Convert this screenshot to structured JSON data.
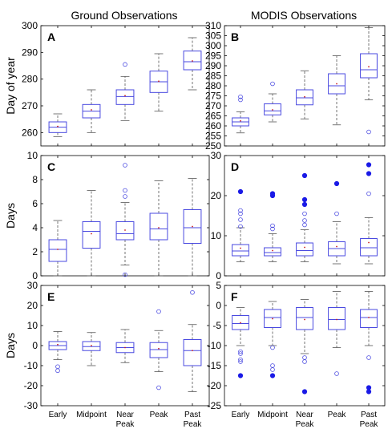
{
  "figure": {
    "column_titles": [
      "Ground Observations",
      "MODIS Observations"
    ],
    "box_color": "#4a4ae0",
    "median_color": "#cc2222",
    "whisker_color": "#555555",
    "filled_outlier_color": "#1a1ae6"
  },
  "chart_data": [
    {
      "type": "box",
      "panel": "A",
      "title": "Ground Observations",
      "ylabel": "Day of year",
      "ylim": [
        255,
        300
      ],
      "yticks": [
        260,
        270,
        280,
        290,
        300
      ],
      "categories": [
        "Early",
        "Midpoint",
        "Near Peak",
        "Peak",
        "Past Peak"
      ],
      "boxes": [
        {
          "whisker_low": 258.5,
          "q1": 260,
          "median": 262,
          "q3": 264,
          "whisker_high": 267,
          "mean": 262.3,
          "outliers": [],
          "filled_outliers": []
        },
        {
          "whisker_low": 260,
          "q1": 265.5,
          "median": 268,
          "q3": 270.5,
          "whisker_high": 276,
          "mean": 268.5,
          "outliers": [],
          "filled_outliers": []
        },
        {
          "whisker_low": 264.5,
          "q1": 270.5,
          "median": 273.5,
          "q3": 276,
          "whisker_high": 281,
          "mean": 273.8,
          "outliers": [
            285.5
          ],
          "filled_outliers": []
        },
        {
          "whisker_low": 268,
          "q1": 275,
          "median": 279,
          "q3": 283,
          "whisker_high": 289.5,
          "mean": 279.2,
          "outliers": [],
          "filled_outliers": []
        },
        {
          "whisker_low": 276,
          "q1": 283.5,
          "median": 286.5,
          "q3": 290.5,
          "whisker_high": 295.5,
          "mean": 286.8,
          "outliers": [],
          "filled_outliers": []
        }
      ]
    },
    {
      "type": "box",
      "panel": "B",
      "title": "MODIS Observations",
      "ylabel": "",
      "ylim": [
        250,
        310
      ],
      "yticks": [
        250,
        255,
        260,
        265,
        270,
        275,
        280,
        285,
        290,
        295,
        300,
        305,
        310
      ],
      "categories": [
        "Early",
        "Midpoint",
        "Near Peak",
        "Peak",
        "Past Peak"
      ],
      "boxes": [
        {
          "whisker_low": 256.5,
          "q1": 260,
          "median": 262,
          "q3": 264,
          "whisker_high": 267,
          "mean": 262.5,
          "outliers": [
            273,
            274.5
          ],
          "filled_outliers": []
        },
        {
          "whisker_low": 262,
          "q1": 265.5,
          "median": 267.5,
          "q3": 271,
          "whisker_high": 276,
          "mean": 268,
          "outliers": [
            281
          ],
          "filled_outliers": []
        },
        {
          "whisker_low": 263.5,
          "q1": 270.5,
          "median": 274,
          "q3": 278,
          "whisker_high": 287.5,
          "mean": 274.5,
          "outliers": [],
          "filled_outliers": []
        },
        {
          "whisker_low": 260.5,
          "q1": 276,
          "median": 280,
          "q3": 286,
          "whisker_high": 295,
          "mean": 281,
          "outliers": [],
          "filled_outliers": []
        },
        {
          "whisker_low": 273,
          "q1": 284,
          "median": 288,
          "q3": 296,
          "whisker_high": 309,
          "mean": 289.5,
          "outliers": [
            257
          ],
          "filled_outliers": []
        }
      ]
    },
    {
      "type": "box",
      "panel": "C",
      "title": "",
      "ylabel": "Days",
      "ylim": [
        0,
        10
      ],
      "yticks": [
        0,
        2,
        4,
        6,
        8,
        10
      ],
      "categories": [
        "Early",
        "Midpoint",
        "Near Peak",
        "Peak",
        "Past Peak"
      ],
      "boxes": [
        {
          "whisker_low": 0,
          "q1": 1.2,
          "median": 2.2,
          "q3": 3,
          "whisker_high": 4.6,
          "mean": 2.2,
          "outliers": [],
          "filled_outliers": []
        },
        {
          "whisker_low": 0,
          "q1": 2.3,
          "median": 3.7,
          "q3": 4.5,
          "whisker_high": 7.1,
          "mean": 3.5,
          "outliers": [],
          "filled_outliers": []
        },
        {
          "whisker_low": 0.9,
          "q1": 3,
          "median": 3.5,
          "q3": 4.5,
          "whisker_high": 6.1,
          "mean": 3.8,
          "outliers": [
            0.1,
            6.6,
            7.1,
            9.2
          ],
          "filled_outliers": []
        },
        {
          "whisker_low": 0,
          "q1": 3,
          "median": 3.9,
          "q3": 5.2,
          "whisker_high": 7.9,
          "mean": 4.0,
          "outliers": [],
          "filled_outliers": []
        },
        {
          "whisker_low": 0,
          "q1": 2.7,
          "median": 4,
          "q3": 5.5,
          "whisker_high": 8.1,
          "mean": 4.1,
          "outliers": [],
          "filled_outliers": []
        }
      ]
    },
    {
      "type": "box",
      "panel": "D",
      "title": "",
      "ylabel": "",
      "ylim": [
        0,
        30
      ],
      "yticks": [
        0,
        10,
        20,
        30
      ],
      "categories": [
        "Early",
        "Midpoint",
        "Near Peak",
        "Peak",
        "Past Peak"
      ],
      "boxes": [
        {
          "whisker_low": 3.5,
          "q1": 5,
          "median": 6.2,
          "q3": 7.8,
          "whisker_high": 12,
          "mean": 6.9,
          "outliers": [
            12.3,
            14,
            15.5,
            16.3
          ],
          "filled_outliers": [
            21
          ]
        },
        {
          "whisker_low": 3.5,
          "q1": 5,
          "median": 5.8,
          "q3": 7,
          "whisker_high": 10.5,
          "mean": 6.3,
          "outliers": [
            11.7,
            12.5
          ],
          "filled_outliers": [
            20,
            20.5
          ]
        },
        {
          "whisker_low": 3.5,
          "q1": 5,
          "median": 6.3,
          "q3": 8.2,
          "whisker_high": 11.5,
          "mean": 7.1,
          "outliers": [
            12.7,
            13.8,
            15.5
          ],
          "filled_outliers": [
            17.8,
            19,
            25
          ]
        },
        {
          "whisker_low": 3,
          "q1": 5,
          "median": 6.8,
          "q3": 8.5,
          "whisker_high": 13.5,
          "mean": 7.3,
          "outliers": [
            15.5
          ],
          "filled_outliers": [
            23
          ]
        },
        {
          "whisker_low": 3,
          "q1": 5,
          "median": 7,
          "q3": 9.3,
          "whisker_high": 14.5,
          "mean": 8.3,
          "outliers": [
            20.5
          ],
          "filled_outliers": [
            25.5,
            27.7
          ]
        }
      ]
    },
    {
      "type": "box",
      "panel": "E",
      "title": "",
      "ylabel": "Days",
      "ylim": [
        -30,
        30
      ],
      "yticks": [
        -30,
        -20,
        -10,
        0,
        10,
        20,
        30
      ],
      "categories": [
        "Early",
        "Midpoint",
        "Near Peak",
        "Peak",
        "Past Peak"
      ],
      "boxes": [
        {
          "whisker_low": -7,
          "q1": -2,
          "median": 0,
          "q3": 2,
          "whisker_high": 7,
          "mean": 0.5,
          "outliers": [
            -10.5,
            -12.5
          ],
          "filled_outliers": []
        },
        {
          "whisker_low": -10,
          "q1": -2.5,
          "median": -0.5,
          "q3": 2,
          "whisker_high": 6.5,
          "mean": 0,
          "outliers": [],
          "filled_outliers": []
        },
        {
          "whisker_low": -8.5,
          "q1": -3.5,
          "median": -1,
          "q3": 1.5,
          "whisker_high": 8,
          "mean": -1,
          "outliers": [],
          "filled_outliers": []
        },
        {
          "whisker_low": -13,
          "q1": -6,
          "median": -2,
          "q3": 1.5,
          "whisker_high": 7.5,
          "mean": -1.5,
          "outliers": [
            17,
            -21
          ],
          "filled_outliers": []
        },
        {
          "whisker_low": -23,
          "q1": -10,
          "median": -2.5,
          "q3": 3,
          "whisker_high": 10.5,
          "mean": -2.5,
          "outliers": [
            26.5
          ],
          "filled_outliers": []
        }
      ]
    },
    {
      "type": "box",
      "panel": "F",
      "title": "",
      "ylabel": "",
      "ylim": [
        -25,
        5
      ],
      "yticks": [
        -25,
        -20,
        -15,
        -10,
        -5,
        0,
        5
      ],
      "categories": [
        "Early",
        "Midpoint",
        "Near Peak",
        "Peak",
        "Past Peak"
      ],
      "boxes": [
        {
          "whisker_low": -10,
          "q1": -6,
          "median": -4.5,
          "q3": -2.5,
          "whisker_high": -0.5,
          "mean": -4.3,
          "outliers": [
            -11.5,
            -12,
            -13.5,
            -14
          ],
          "filled_outliers": [
            -17.5
          ]
        },
        {
          "whisker_low": -10,
          "q1": -5.5,
          "median": -3,
          "q3": -1,
          "whisker_high": 1,
          "mean": -3.3,
          "outliers": [
            -10.5,
            -15,
            -16
          ],
          "filled_outliers": [
            -17.5
          ]
        },
        {
          "whisker_low": -12,
          "q1": -6,
          "median": -3,
          "q3": -0.5,
          "whisker_high": 1.5,
          "mean": -3.5,
          "outliers": [
            -13,
            -14
          ],
          "filled_outliers": [
            -21.5
          ]
        },
        {
          "whisker_low": -10.5,
          "q1": -6,
          "median": -3.5,
          "q3": -0.5,
          "whisker_high": 3.5,
          "mean": -3.5,
          "outliers": [
            -17
          ],
          "filled_outliers": []
        },
        {
          "whisker_low": -10,
          "q1": -5.5,
          "median": -3,
          "q3": -1,
          "whisker_high": 3.5,
          "mean": -3,
          "outliers": [
            -13
          ],
          "filled_outliers": [
            -20.5,
            -21.5
          ]
        }
      ]
    }
  ],
  "x_tick_labels": [
    [
      "Early"
    ],
    [
      "Midpoint"
    ],
    [
      "Near",
      "Peak"
    ],
    [
      "Peak"
    ],
    [
      "Past",
      "Peak"
    ]
  ]
}
